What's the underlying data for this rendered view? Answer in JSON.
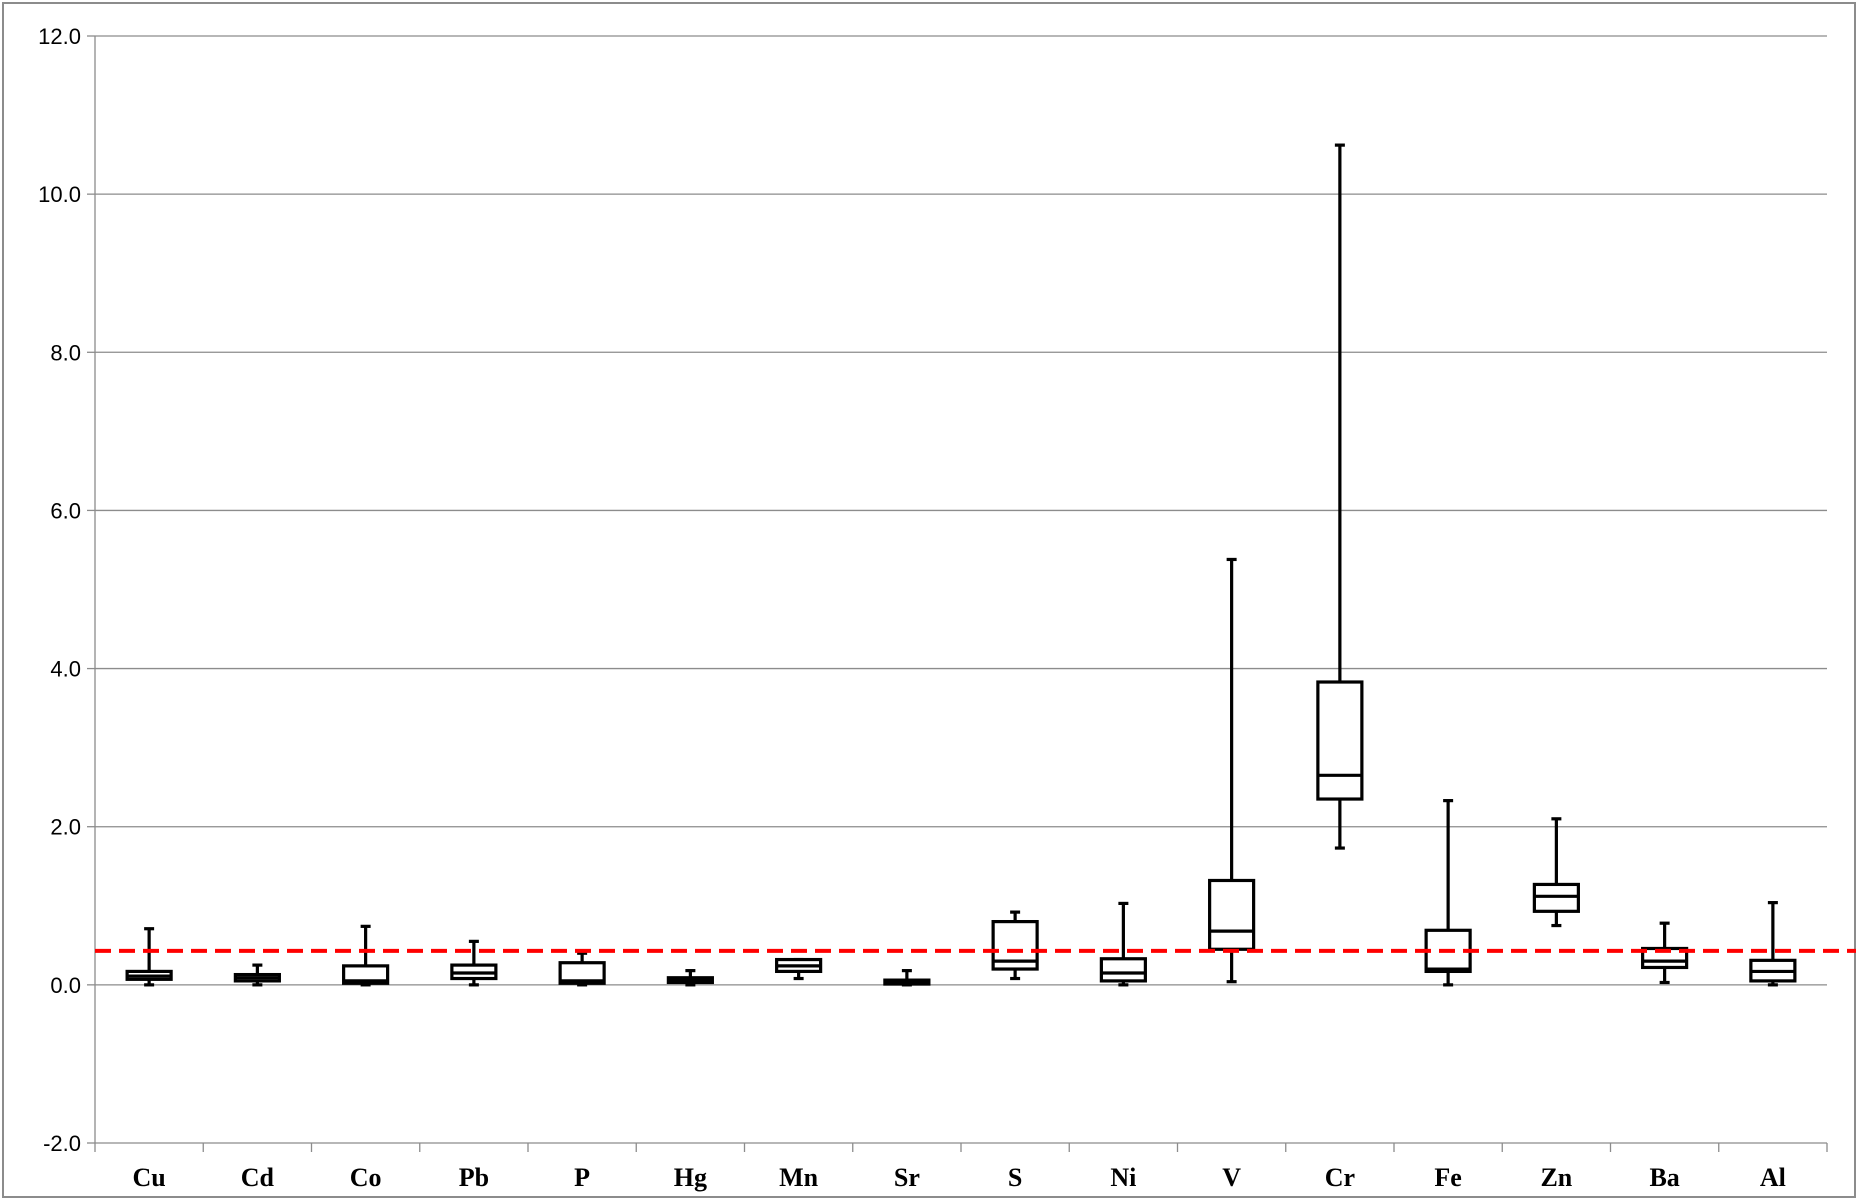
{
  "chart_data": {
    "type": "boxplot",
    "title": "",
    "xlabel": "",
    "ylabel": "",
    "ylim": [
      -2.0,
      12.0
    ],
    "ytick_step": 2.0,
    "ytick_labels": [
      "-2.0",
      "0.0",
      "2.0",
      "4.0",
      "6.0",
      "8.0",
      "10.0",
      "12.0"
    ],
    "grid": "horizontal",
    "reference_line": {
      "y": 0.43,
      "style": "dashed",
      "color": "#ff0000"
    },
    "box_color": "#000000",
    "categories": [
      "Cu",
      "Cd",
      "Co",
      "Pb",
      "P",
      "Hg",
      "Mn",
      "Sr",
      "S",
      "Ni",
      "V",
      "Cr",
      "Fe",
      "Zn",
      "Ba",
      "Al"
    ],
    "boxes": [
      {
        "min": 0.0,
        "q1": 0.07,
        "median": 0.11,
        "q3": 0.17,
        "max": 0.71
      },
      {
        "min": 0.0,
        "q1": 0.05,
        "median": 0.09,
        "q3": 0.13,
        "max": 0.25
      },
      {
        "min": 0.0,
        "q1": 0.02,
        "median": 0.05,
        "q3": 0.24,
        "max": 0.74
      },
      {
        "min": 0.0,
        "q1": 0.08,
        "median": 0.15,
        "q3": 0.25,
        "max": 0.55
      },
      {
        "min": 0.0,
        "q1": 0.02,
        "median": 0.05,
        "q3": 0.28,
        "max": 0.4
      },
      {
        "min": 0.0,
        "q1": 0.03,
        "median": 0.06,
        "q3": 0.09,
        "max": 0.18
      },
      {
        "min": 0.08,
        "q1": 0.17,
        "median": 0.24,
        "q3": 0.32,
        "max": 0.32
      },
      {
        "min": 0.0,
        "q1": 0.01,
        "median": 0.03,
        "q3": 0.06,
        "max": 0.18
      },
      {
        "min": 0.08,
        "q1": 0.2,
        "median": 0.3,
        "q3": 0.8,
        "max": 0.92
      },
      {
        "min": 0.0,
        "q1": 0.05,
        "median": 0.15,
        "q3": 0.33,
        "max": 1.03
      },
      {
        "min": 0.04,
        "q1": 0.45,
        "median": 0.68,
        "q3": 1.32,
        "max": 5.38
      },
      {
        "min": 1.73,
        "q1": 2.35,
        "median": 2.65,
        "q3": 3.83,
        "max": 10.62
      },
      {
        "min": 0.0,
        "q1": 0.17,
        "median": 0.2,
        "q3": 0.69,
        "max": 2.33
      },
      {
        "min": 0.75,
        "q1": 0.93,
        "median": 1.12,
        "q3": 1.27,
        "max": 2.1
      },
      {
        "min": 0.03,
        "q1": 0.22,
        "median": 0.3,
        "q3": 0.46,
        "max": 0.78
      },
      {
        "min": 0.0,
        "q1": 0.05,
        "median": 0.17,
        "q3": 0.31,
        "max": 1.04
      }
    ]
  }
}
